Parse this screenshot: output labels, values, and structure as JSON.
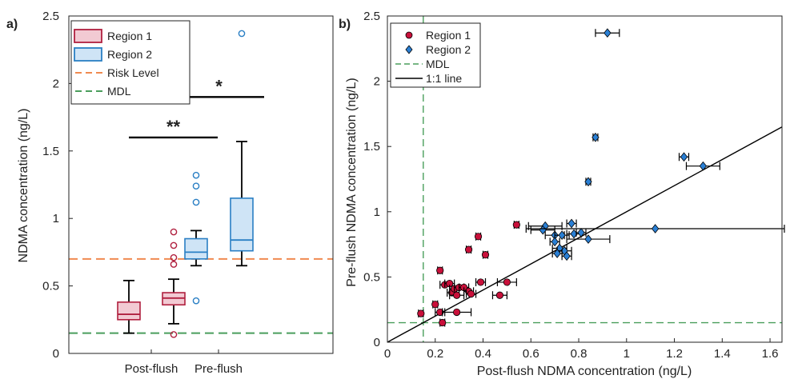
{
  "chart_data": [
    {
      "panel_label": "a)",
      "type": "box",
      "ylabel": "NDMA concentration (ng/L)",
      "ylim": [
        0,
        2.5
      ],
      "yticks": [
        0,
        0.5,
        1,
        1.5,
        2,
        2.5
      ],
      "ytick_labels": [
        "0",
        "0.5",
        "1",
        "1.5",
        "2",
        "2.5"
      ],
      "categories": [
        "Post-flush",
        "Pre-flush"
      ],
      "series": [
        {
          "name": "Region 1",
          "color": "#b0203f",
          "fill": "#f2cad3",
          "boxes": [
            {
              "category": "Post-flush",
              "whisker_low": 0.15,
              "q1": 0.25,
              "median": 0.29,
              "q3": 0.38,
              "whisker_high": 0.54,
              "outliers": []
            },
            {
              "category": "Pre-flush",
              "whisker_low": 0.22,
              "q1": 0.36,
              "median": 0.41,
              "q3": 0.45,
              "whisker_high": 0.55,
              "outliers": [
                0.14,
                0.66,
                0.71,
                0.8,
                0.9
              ]
            }
          ]
        },
        {
          "name": "Region 2",
          "color": "#2a7fc4",
          "fill": "#cfe4f6",
          "boxes": [
            {
              "category": "Post-flush",
              "whisker_low": 0.65,
              "q1": 0.7,
              "median": 0.75,
              "q3": 0.85,
              "whisker_high": 0.91,
              "outliers": [
                0.39,
                1.12,
                1.24,
                1.32
              ]
            },
            {
              "category": "Pre-flush",
              "whisker_low": 0.65,
              "q1": 0.76,
              "median": 0.84,
              "q3": 1.15,
              "whisker_high": 1.57,
              "outliers": [
                2.37
              ]
            }
          ]
        }
      ],
      "reference_lines": [
        {
          "name": "Risk Level",
          "value": 0.7,
          "color": "#f08a50",
          "dash": true
        },
        {
          "name": "MDL",
          "value": 0.15,
          "color": "#4a9e5c",
          "dash": true
        }
      ],
      "significance": [
        {
          "label": "**",
          "y": 1.6,
          "from": "Region 1 Post-flush",
          "to": "Region 1 Pre-flush"
        },
        {
          "label": "*",
          "y": 1.9,
          "from": "Region 2 Post-flush",
          "to": "Region 2 Pre-flush"
        }
      ],
      "legend": {
        "position": "top-left",
        "entries": [
          "Region 1",
          "Region 2",
          "Risk Level",
          "MDL"
        ]
      }
    },
    {
      "panel_label": "b)",
      "type": "scatter",
      "xlabel": "Post-flush NDMA concentration (ng/L)",
      "ylabel": "Pre-flush NDMA concentration (ng/L)",
      "xlim": [
        0,
        1.65
      ],
      "ylim": [
        0,
        2.5
      ],
      "xticks": [
        0,
        0.2,
        0.4,
        0.6,
        0.8,
        1,
        1.2,
        1.4,
        1.6
      ],
      "xtick_labels": [
        "0",
        "0.2",
        "0.4",
        "0.6",
        "0.8",
        "1",
        "1.2",
        "1.4",
        "1.6"
      ],
      "yticks": [
        0,
        0.5,
        1,
        1.5,
        2,
        2.5
      ],
      "ytick_labels": [
        "0",
        "0.5",
        "1",
        "1.5",
        "2",
        "2.5"
      ],
      "legend": {
        "position": "top-left",
        "entries": [
          "Region 1",
          "Region 2",
          "MDL",
          "1:1 line"
        ]
      },
      "mdl": {
        "name": "MDL",
        "value": 0.15,
        "color": "#4a9e5c"
      },
      "identity_line": {
        "name": "1:1 line",
        "color": "#000000"
      },
      "series": [
        {
          "name": "Region 1",
          "marker": "circle",
          "color": "#c8103a",
          "points": [
            {
              "x": 0.14,
              "y": 0.22,
              "xerr": 0.01
            },
            {
              "x": 0.2,
              "y": 0.29,
              "xerr": 0.01
            },
            {
              "x": 0.22,
              "y": 0.23,
              "xerr": 0.02
            },
            {
              "x": 0.23,
              "y": 0.15,
              "xerr": 0.01
            },
            {
              "x": 0.22,
              "y": 0.55,
              "xerr": 0.01
            },
            {
              "x": 0.24,
              "y": 0.44,
              "xerr": 0.02
            },
            {
              "x": 0.26,
              "y": 0.45,
              "xerr": 0.02
            },
            {
              "x": 0.27,
              "y": 0.38,
              "xerr": 0.02
            },
            {
              "x": 0.28,
              "y": 0.41,
              "xerr": 0.02
            },
            {
              "x": 0.29,
              "y": 0.36,
              "xerr": 0.03
            },
            {
              "x": 0.3,
              "y": 0.42,
              "xerr": 0.02
            },
            {
              "x": 0.29,
              "y": 0.23,
              "xerr": 0.06
            },
            {
              "x": 0.32,
              "y": 0.42,
              "xerr": 0.02
            },
            {
              "x": 0.34,
              "y": 0.39,
              "xerr": 0.02
            },
            {
              "x": 0.35,
              "y": 0.37,
              "xerr": 0.02
            },
            {
              "x": 0.34,
              "y": 0.71,
              "xerr": 0.01
            },
            {
              "x": 0.38,
              "y": 0.81,
              "xerr": 0.01
            },
            {
              "x": 0.39,
              "y": 0.46,
              "xerr": 0.02
            },
            {
              "x": 0.41,
              "y": 0.67,
              "xerr": 0.01
            },
            {
              "x": 0.47,
              "y": 0.36,
              "xerr": 0.03
            },
            {
              "x": 0.5,
              "y": 0.46,
              "xerr": 0.04
            },
            {
              "x": 0.54,
              "y": 0.9,
              "xerr": 0.01
            }
          ]
        },
        {
          "name": "Region 2",
          "marker": "diamond",
          "color": "#2a7fd4",
          "points": [
            {
              "x": 0.92,
              "y": 2.37,
              "xerr": 0.05
            },
            {
              "x": 0.87,
              "y": 1.57,
              "xerr": 0.01
            },
            {
              "x": 1.24,
              "y": 1.42,
              "xerr": 0.02
            },
            {
              "x": 1.32,
              "y": 1.35,
              "xerr": 0.07
            },
            {
              "x": 0.84,
              "y": 1.23,
              "xerr": 0.01
            },
            {
              "x": 0.66,
              "y": 0.89,
              "xerr": 0.07
            },
            {
              "x": 0.77,
              "y": 0.91,
              "xerr": 0.02
            },
            {
              "x": 0.65,
              "y": 0.86,
              "xerr": 0.05
            },
            {
              "x": 0.7,
              "y": 0.82,
              "xerr": 0.04
            },
            {
              "x": 0.73,
              "y": 0.82,
              "xerr": 0.03
            },
            {
              "x": 0.78,
              "y": 0.83,
              "xerr": 0.03
            },
            {
              "x": 0.81,
              "y": 0.84,
              "xerr": 0.02
            },
            {
              "x": 0.84,
              "y": 0.79,
              "xerr": 0.09
            },
            {
              "x": 1.12,
              "y": 0.87,
              "xerr": 0.54
            },
            {
              "x": 0.7,
              "y": 0.77,
              "xerr": 0.02
            },
            {
              "x": 0.72,
              "y": 0.72,
              "xerr": 0.03
            },
            {
              "x": 0.74,
              "y": 0.7,
              "xerr": 0.03
            },
            {
              "x": 0.71,
              "y": 0.68,
              "xerr": 0.02
            },
            {
              "x": 0.75,
              "y": 0.66,
              "xerr": 0.02
            }
          ]
        }
      ]
    }
  ]
}
